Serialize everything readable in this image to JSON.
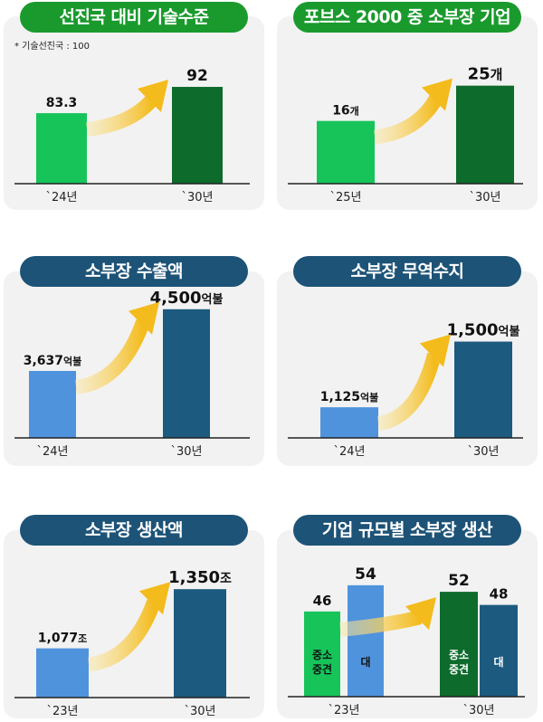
{
  "colors": {
    "green_title": "#1a9a2d",
    "navy_title": "#1d5377",
    "light_green": "#16c45a",
    "dark_green": "#0d6b2c",
    "light_blue": "#4f93dd",
    "dark_blue": "#1c5a7f",
    "arrow": "#f3bb1b",
    "panel_bg": "#f2f2f2"
  },
  "chart_data": [
    {
      "id": "p1",
      "type": "bar",
      "title": "선진국 대비 기술수준",
      "note": "* 기술선진국 : 100",
      "categories": [
        "`24년",
        "`30년"
      ],
      "values": [
        83.3,
        92
      ],
      "value_labels": [
        {
          "num": "83.3",
          "unit": ""
        },
        {
          "num": "92",
          "unit": ""
        }
      ],
      "ylim": [
        60,
        95
      ]
    },
    {
      "id": "p2",
      "type": "bar",
      "title": "포브스 2000 중 소부장 기업",
      "categories": [
        "`25년",
        "`30년"
      ],
      "values": [
        16,
        25
      ],
      "value_labels": [
        {
          "num": "16",
          "unit": "개"
        },
        {
          "num": "25",
          "unit": "개"
        }
      ],
      "ylim": [
        0,
        27
      ]
    },
    {
      "id": "p3",
      "type": "bar",
      "title": "소부장 수출액",
      "categories": [
        "`24년",
        "`30년"
      ],
      "values": [
        3637,
        4500
      ],
      "value_labels": [
        {
          "num": "3,637",
          "unit": "억불"
        },
        {
          "num": "4,500",
          "unit": "억불"
        }
      ],
      "ylim": [
        2700,
        4700
      ]
    },
    {
      "id": "p4",
      "type": "bar",
      "title": "소부장 무역수지",
      "categories": [
        "`24년",
        "`30년"
      ],
      "values": [
        1125,
        1500
      ],
      "value_labels": [
        {
          "num": "1,125",
          "unit": "억불"
        },
        {
          "num": "1,500",
          "unit": "억불"
        }
      ],
      "ylim": [
        950,
        1570
      ]
    },
    {
      "id": "p5",
      "type": "bar",
      "title": "소부장 생산액",
      "categories": [
        "`23년",
        "`30년"
      ],
      "values": [
        1077,
        1350
      ],
      "value_labels": [
        {
          "num": "1,077",
          "unit": "조"
        },
        {
          "num": "1,350",
          "unit": "조"
        }
      ],
      "ylim": [
        850,
        1380
      ]
    },
    {
      "id": "p6",
      "type": "bar",
      "title": "기업 규모별 소부장 생산",
      "categories": [
        "`23년",
        "`30년"
      ],
      "series": [
        {
          "name": "중소\n중견",
          "values": [
            46,
            52
          ]
        },
        {
          "name": "대",
          "values": [
            54,
            48
          ]
        }
      ],
      "ylim": [
        20,
        57
      ]
    }
  ]
}
